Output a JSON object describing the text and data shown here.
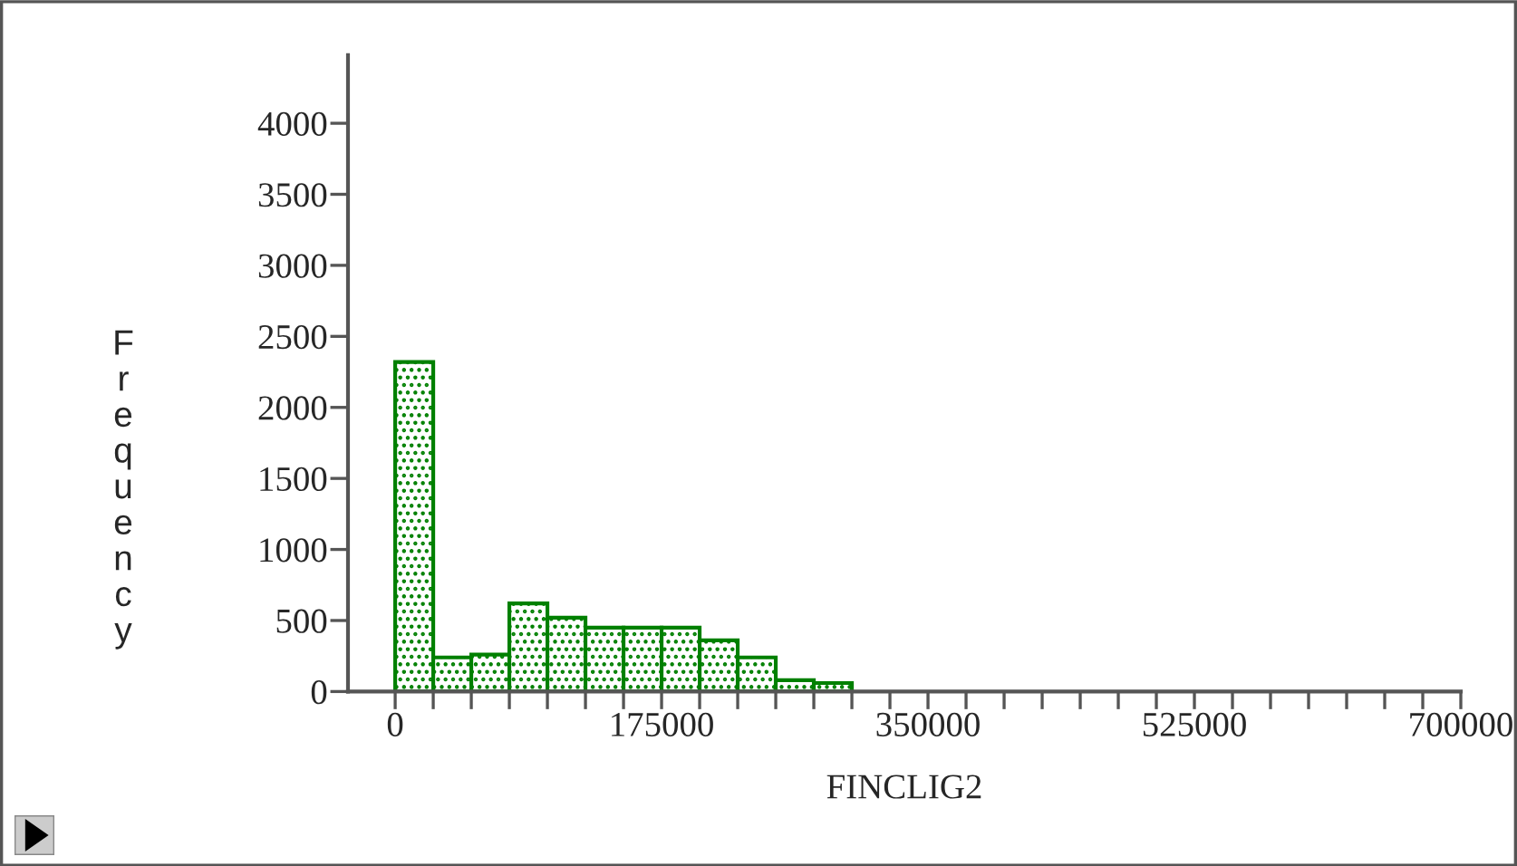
{
  "chart_data": {
    "type": "histogram",
    "xlabel": "FINCLIG2",
    "ylabel": "Frequency",
    "bins": [
      0,
      25000,
      50000,
      75000,
      100000,
      125000,
      150000,
      175000,
      200000,
      225000,
      250000,
      275000,
      300000
    ],
    "values": [
      2320,
      240,
      260,
      620,
      520,
      450,
      450,
      450,
      360,
      240,
      80,
      60
    ],
    "color": "#008000",
    "xlim": [
      -31000,
      700000
    ],
    "ylim": [
      0,
      4480
    ],
    "xticks": [
      0,
      {
        "value": 25000,
        "label": null
      },
      {
        "value": 50000,
        "label": null
      },
      {
        "value": 75000,
        "label": null
      },
      {
        "value": 100000,
        "label": null
      },
      {
        "value": 125000,
        "label": null
      },
      {
        "value": 150000,
        "label": null
      },
      175000,
      {
        "value": 200000,
        "label": null
      },
      {
        "value": 225000,
        "label": null
      },
      {
        "value": 250000,
        "label": null
      },
      {
        "value": 275000,
        "label": null
      },
      {
        "value": 300000,
        "label": null
      },
      {
        "value": 325000,
        "label": null
      },
      350000,
      {
        "value": 375000,
        "label": null
      },
      {
        "value": 400000,
        "label": null
      },
      {
        "value": 425000,
        "label": null
      },
      {
        "value": 450000,
        "label": null
      },
      {
        "value": 475000,
        "label": null
      },
      {
        "value": 500000,
        "label": null
      },
      525000,
      {
        "value": 550000,
        "label": null
      },
      {
        "value": 575000,
        "label": null
      },
      {
        "value": 600000,
        "label": null
      },
      {
        "value": 625000,
        "label": null
      },
      {
        "value": 650000,
        "label": null
      },
      {
        "value": 675000,
        "label": null
      },
      700000
    ],
    "yticks": [
      0,
      500,
      1000,
      1500,
      2000,
      2500,
      3000,
      3500,
      4000
    ],
    "grid": false,
    "legend": false
  }
}
